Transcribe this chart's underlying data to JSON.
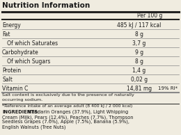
{
  "title": "Nutrition Information",
  "header": "Per 100 g",
  "rows": [
    {
      "label": "Energy",
      "value": "485 kJ / 117 kcal",
      "indent": false
    },
    {
      "label": "Fat",
      "value": "8 g",
      "indent": false
    },
    {
      "label": "   Of which Saturates",
      "value": "3,7 g",
      "indent": false
    },
    {
      "label": "Carbohydrate",
      "value": "9 g",
      "indent": false
    },
    {
      "label": "   Of which Sugars",
      "value": "8 g",
      "indent": false
    },
    {
      "label": "Protein",
      "value": "1,4 g",
      "indent": false
    },
    {
      "label": "Salt",
      "value": "0,02 g",
      "indent": false
    },
    {
      "label": "Vitamin C",
      "value": "14,81 mg",
      "extra": "19% RI*",
      "indent": false
    }
  ],
  "footnote1": "Salt content is exclusively due to the presence of naturally",
  "footnote1b": "occurring sodium.",
  "footnote2": "*Reference intake of an average adult (8 400 kJ / 2 000 kcal)",
  "ingr_bold": "INGREDIENTS:",
  "ingr_rest": "Mandarin Oranges (37.9%), Light Whipping",
  "ingr_lines": [
    "Cream (Milk), Pears (12.4%), Peaches (7.7%), Thompson",
    "Seedless Grapes (7.6%), Apple (7.5%), Banana (5.9%),",
    "English Walnuts (Tree Nuts)"
  ],
  "bg_color": "#f0ece0",
  "text_color": "#1a1a1a",
  "line_color": "#888888",
  "thick_line_color": "#222222"
}
